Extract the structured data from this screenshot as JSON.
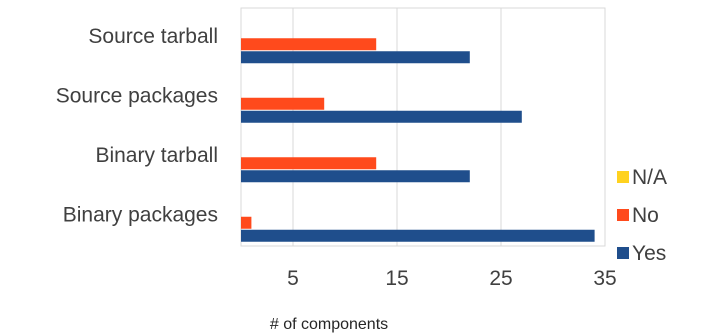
{
  "chart_data": {
    "type": "bar",
    "orientation": "horizontal",
    "categories": [
      "Binary packages",
      "Binary tarball",
      "Source packages",
      "Source tarball"
    ],
    "series": [
      {
        "name": "Yes",
        "values": [
          34,
          22,
          27,
          22
        ],
        "color": "#1F4E8C"
      },
      {
        "name": "No",
        "values": [
          1,
          13,
          8,
          13
        ],
        "color": "#FF4A1C"
      },
      {
        "name": "N/A",
        "values": [
          0,
          0,
          0,
          0
        ],
        "color": "#FFD21F"
      }
    ],
    "xlim": [
      0,
      35
    ],
    "xticks": [
      5,
      15,
      25,
      35
    ],
    "xlabel": "# of components",
    "ylabel": "",
    "title": "",
    "grid": "vertical",
    "legend_position": "right"
  }
}
